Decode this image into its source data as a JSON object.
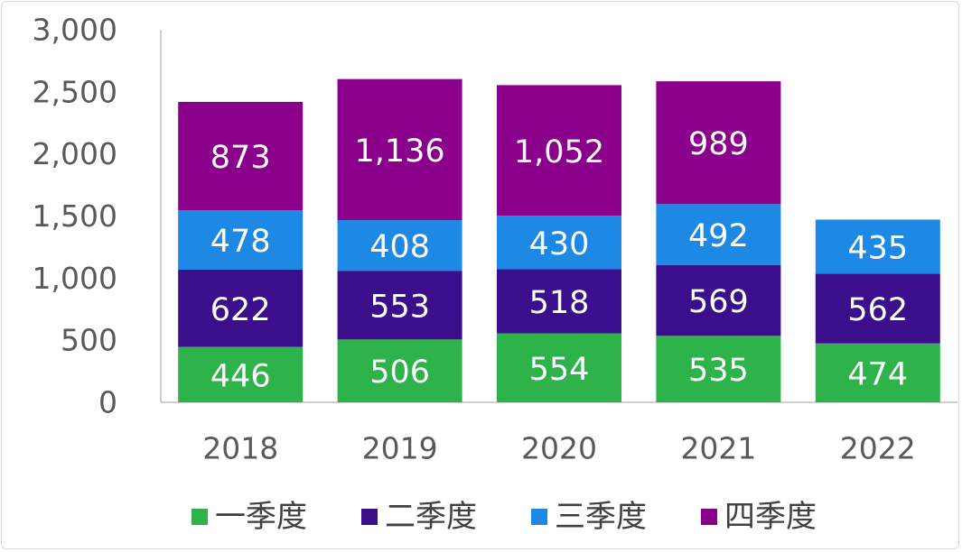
{
  "chart_data": {
    "type": "bar",
    "stacked": true,
    "categories": [
      "2018",
      "2019",
      "2020",
      "2021",
      "2022"
    ],
    "series": [
      {
        "name": "一季度",
        "color": "#2db34a",
        "values": [
          446,
          506,
          554,
          535,
          474
        ],
        "labels": [
          "446",
          "506",
          "554",
          "535",
          "474"
        ]
      },
      {
        "name": "二季度",
        "color": "#3b0f8c",
        "values": [
          622,
          553,
          518,
          569,
          562
        ],
        "labels": [
          "622",
          "553",
          "518",
          "569",
          "562"
        ]
      },
      {
        "name": "三季度",
        "color": "#1e88e5",
        "values": [
          478,
          408,
          430,
          492,
          435
        ],
        "labels": [
          "478",
          "408",
          "430",
          "492",
          "435"
        ]
      },
      {
        "name": "四季度",
        "color": "#8b008b",
        "values": [
          873,
          1136,
          1052,
          989,
          null
        ],
        "labels": [
          "873",
          "1,136",
          "1,052",
          "989",
          null
        ]
      }
    ],
    "yticks": [
      "0",
      "500",
      "1,000",
      "1,500",
      "2,000",
      "2,500",
      "3,000"
    ],
    "ylim": [
      0,
      3000
    ],
    "grid": false,
    "legend": "bottom"
  }
}
